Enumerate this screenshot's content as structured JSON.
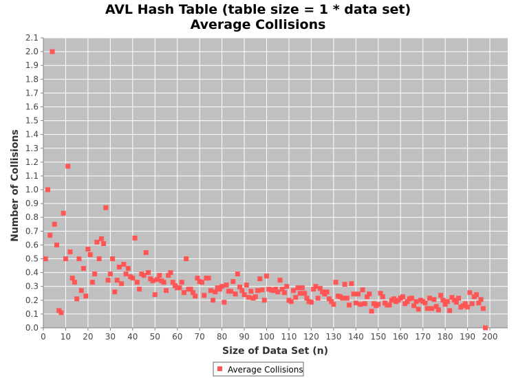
{
  "chart_data": {
    "type": "scatter",
    "title": "AVL Hash Table (table size = 1 * data set)",
    "subtitle": "Average Collisions",
    "xlabel": "Size of Data Set (n)",
    "ylabel": "Number of Collisions",
    "xlim": [
      0,
      208
    ],
    "ylim": [
      0,
      2.1
    ],
    "x_ticks": [
      0,
      10,
      20,
      30,
      40,
      50,
      60,
      70,
      80,
      90,
      100,
      110,
      120,
      130,
      140,
      150,
      160,
      170,
      180,
      190,
      200
    ],
    "y_ticks": [
      "0.0",
      "0.1",
      "0.2",
      "0.3",
      "0.4",
      "0.5",
      "0.6",
      "0.7",
      "0.8",
      "0.9",
      "1.0",
      "1.1",
      "1.2",
      "1.3",
      "1.4",
      "1.5",
      "1.6",
      "1.7",
      "1.8",
      "1.9",
      "2.0",
      "2.1"
    ],
    "grid": true,
    "legend_position": "bottom",
    "colors": {
      "marker": "#ff5555",
      "plot_bg": "#c0c0c0",
      "grid": "#ffffff"
    },
    "series": [
      {
        "name": "Average Collisions",
        "points": [
          [
            1,
            0.5
          ],
          [
            2,
            1.0
          ],
          [
            3,
            0.67
          ],
          [
            4,
            2.0
          ],
          [
            5,
            0.75
          ],
          [
            6,
            0.6
          ],
          [
            7,
            0.125
          ],
          [
            8,
            0.11
          ],
          [
            9,
            0.83
          ],
          [
            10,
            0.5
          ],
          [
            11,
            1.17
          ],
          [
            12,
            0.55
          ],
          [
            13,
            0.36
          ],
          [
            14,
            0.33
          ],
          [
            15,
            0.21
          ],
          [
            16,
            0.5
          ],
          [
            17,
            0.27
          ],
          [
            18,
            0.43
          ],
          [
            19,
            0.23
          ],
          [
            20,
            0.57
          ],
          [
            21,
            0.53
          ],
          [
            22,
            0.33
          ],
          [
            23,
            0.39
          ],
          [
            24,
            0.62
          ],
          [
            25,
            0.5
          ],
          [
            26,
            0.645
          ],
          [
            27,
            0.61
          ],
          [
            28,
            0.87
          ],
          [
            29,
            0.345
          ],
          [
            30,
            0.39
          ],
          [
            31,
            0.5
          ],
          [
            32,
            0.26
          ],
          [
            33,
            0.345
          ],
          [
            34,
            0.44
          ],
          [
            35,
            0.32
          ],
          [
            36,
            0.46
          ],
          [
            37,
            0.39
          ],
          [
            38,
            0.43
          ],
          [
            39,
            0.37
          ],
          [
            40,
            0.36
          ],
          [
            41,
            0.65
          ],
          [
            42,
            0.33
          ],
          [
            43,
            0.28
          ],
          [
            44,
            0.39
          ],
          [
            45,
            0.38
          ],
          [
            46,
            0.545
          ],
          [
            47,
            0.4
          ],
          [
            48,
            0.355
          ],
          [
            49,
            0.34
          ],
          [
            50,
            0.24
          ],
          [
            51,
            0.35
          ],
          [
            52,
            0.38
          ],
          [
            53,
            0.34
          ],
          [
            54,
            0.33
          ],
          [
            55,
            0.27
          ],
          [
            56,
            0.38
          ],
          [
            57,
            0.4
          ],
          [
            58,
            0.33
          ],
          [
            59,
            0.305
          ],
          [
            60,
            0.29
          ],
          [
            61,
            0.29
          ],
          [
            62,
            0.33
          ],
          [
            63,
            0.255
          ],
          [
            64,
            0.5
          ],
          [
            65,
            0.28
          ],
          [
            66,
            0.28
          ],
          [
            67,
            0.255
          ],
          [
            68,
            0.23
          ],
          [
            69,
            0.36
          ],
          [
            70,
            0.335
          ],
          [
            71,
            0.33
          ],
          [
            72,
            0.235
          ],
          [
            73,
            0.36
          ],
          [
            74,
            0.36
          ],
          [
            75,
            0.27
          ],
          [
            76,
            0.2
          ],
          [
            77,
            0.26
          ],
          [
            78,
            0.29
          ],
          [
            79,
            0.28
          ],
          [
            80,
            0.3
          ],
          [
            81,
            0.185
          ],
          [
            82,
            0.31
          ],
          [
            83,
            0.265
          ],
          [
            84,
            0.265
          ],
          [
            85,
            0.335
          ],
          [
            86,
            0.245
          ],
          [
            87,
            0.39
          ],
          [
            88,
            0.295
          ],
          [
            89,
            0.27
          ],
          [
            90,
            0.24
          ],
          [
            91,
            0.31
          ],
          [
            92,
            0.22
          ],
          [
            93,
            0.265
          ],
          [
            94,
            0.215
          ],
          [
            95,
            0.225
          ],
          [
            96,
            0.27
          ],
          [
            97,
            0.355
          ],
          [
            98,
            0.275
          ],
          [
            99,
            0.2
          ],
          [
            100,
            0.375
          ],
          [
            101,
            0.28
          ],
          [
            102,
            0.275
          ],
          [
            103,
            0.27
          ],
          [
            104,
            0.28
          ],
          [
            105,
            0.26
          ],
          [
            106,
            0.345
          ],
          [
            107,
            0.28
          ],
          [
            108,
            0.255
          ],
          [
            109,
            0.3
          ],
          [
            110,
            0.2
          ],
          [
            111,
            0.19
          ],
          [
            112,
            0.27
          ],
          [
            113,
            0.22
          ],
          [
            114,
            0.29
          ],
          [
            115,
            0.25
          ],
          [
            116,
            0.29
          ],
          [
            117,
            0.25
          ],
          [
            118,
            0.215
          ],
          [
            119,
            0.19
          ],
          [
            120,
            0.185
          ],
          [
            121,
            0.28
          ],
          [
            122,
            0.3
          ],
          [
            123,
            0.215
          ],
          [
            124,
            0.285
          ],
          [
            125,
            0.26
          ],
          [
            126,
            0.245
          ],
          [
            127,
            0.26
          ],
          [
            128,
            0.21
          ],
          [
            129,
            0.19
          ],
          [
            130,
            0.17
          ],
          [
            131,
            0.33
          ],
          [
            132,
            0.23
          ],
          [
            133,
            0.225
          ],
          [
            134,
            0.215
          ],
          [
            135,
            0.315
          ],
          [
            136,
            0.215
          ],
          [
            137,
            0.165
          ],
          [
            138,
            0.32
          ],
          [
            139,
            0.245
          ],
          [
            140,
            0.18
          ],
          [
            141,
            0.245
          ],
          [
            142,
            0.17
          ],
          [
            143,
            0.275
          ],
          [
            144,
            0.175
          ],
          [
            145,
            0.225
          ],
          [
            146,
            0.245
          ],
          [
            147,
            0.12
          ],
          [
            148,
            0.175
          ],
          [
            149,
            0.16
          ],
          [
            150,
            0.17
          ],
          [
            151,
            0.25
          ],
          [
            152,
            0.225
          ],
          [
            153,
            0.18
          ],
          [
            154,
            0.165
          ],
          [
            155,
            0.165
          ],
          [
            156,
            0.2
          ],
          [
            157,
            0.21
          ],
          [
            158,
            0.19
          ],
          [
            159,
            0.2
          ],
          [
            160,
            0.215
          ],
          [
            161,
            0.225
          ],
          [
            162,
            0.175
          ],
          [
            163,
            0.19
          ],
          [
            164,
            0.21
          ],
          [
            165,
            0.215
          ],
          [
            166,
            0.16
          ],
          [
            167,
            0.19
          ],
          [
            168,
            0.135
          ],
          [
            169,
            0.2
          ],
          [
            170,
            0.19
          ],
          [
            171,
            0.18
          ],
          [
            172,
            0.14
          ],
          [
            173,
            0.215
          ],
          [
            174,
            0.14
          ],
          [
            175,
            0.205
          ],
          [
            176,
            0.155
          ],
          [
            177,
            0.13
          ],
          [
            178,
            0.235
          ],
          [
            179,
            0.2
          ],
          [
            180,
            0.17
          ],
          [
            181,
            0.19
          ],
          [
            182,
            0.125
          ],
          [
            183,
            0.22
          ],
          [
            184,
            0.2
          ],
          [
            185,
            0.185
          ],
          [
            186,
            0.215
          ],
          [
            187,
            0.15
          ],
          [
            188,
            0.16
          ],
          [
            189,
            0.175
          ],
          [
            190,
            0.15
          ],
          [
            191,
            0.255
          ],
          [
            192,
            0.175
          ],
          [
            193,
            0.225
          ],
          [
            194,
            0.24
          ],
          [
            195,
            0.18
          ],
          [
            196,
            0.205
          ],
          [
            197,
            0.14
          ],
          [
            198,
            0.0
          ]
        ]
      }
    ]
  }
}
